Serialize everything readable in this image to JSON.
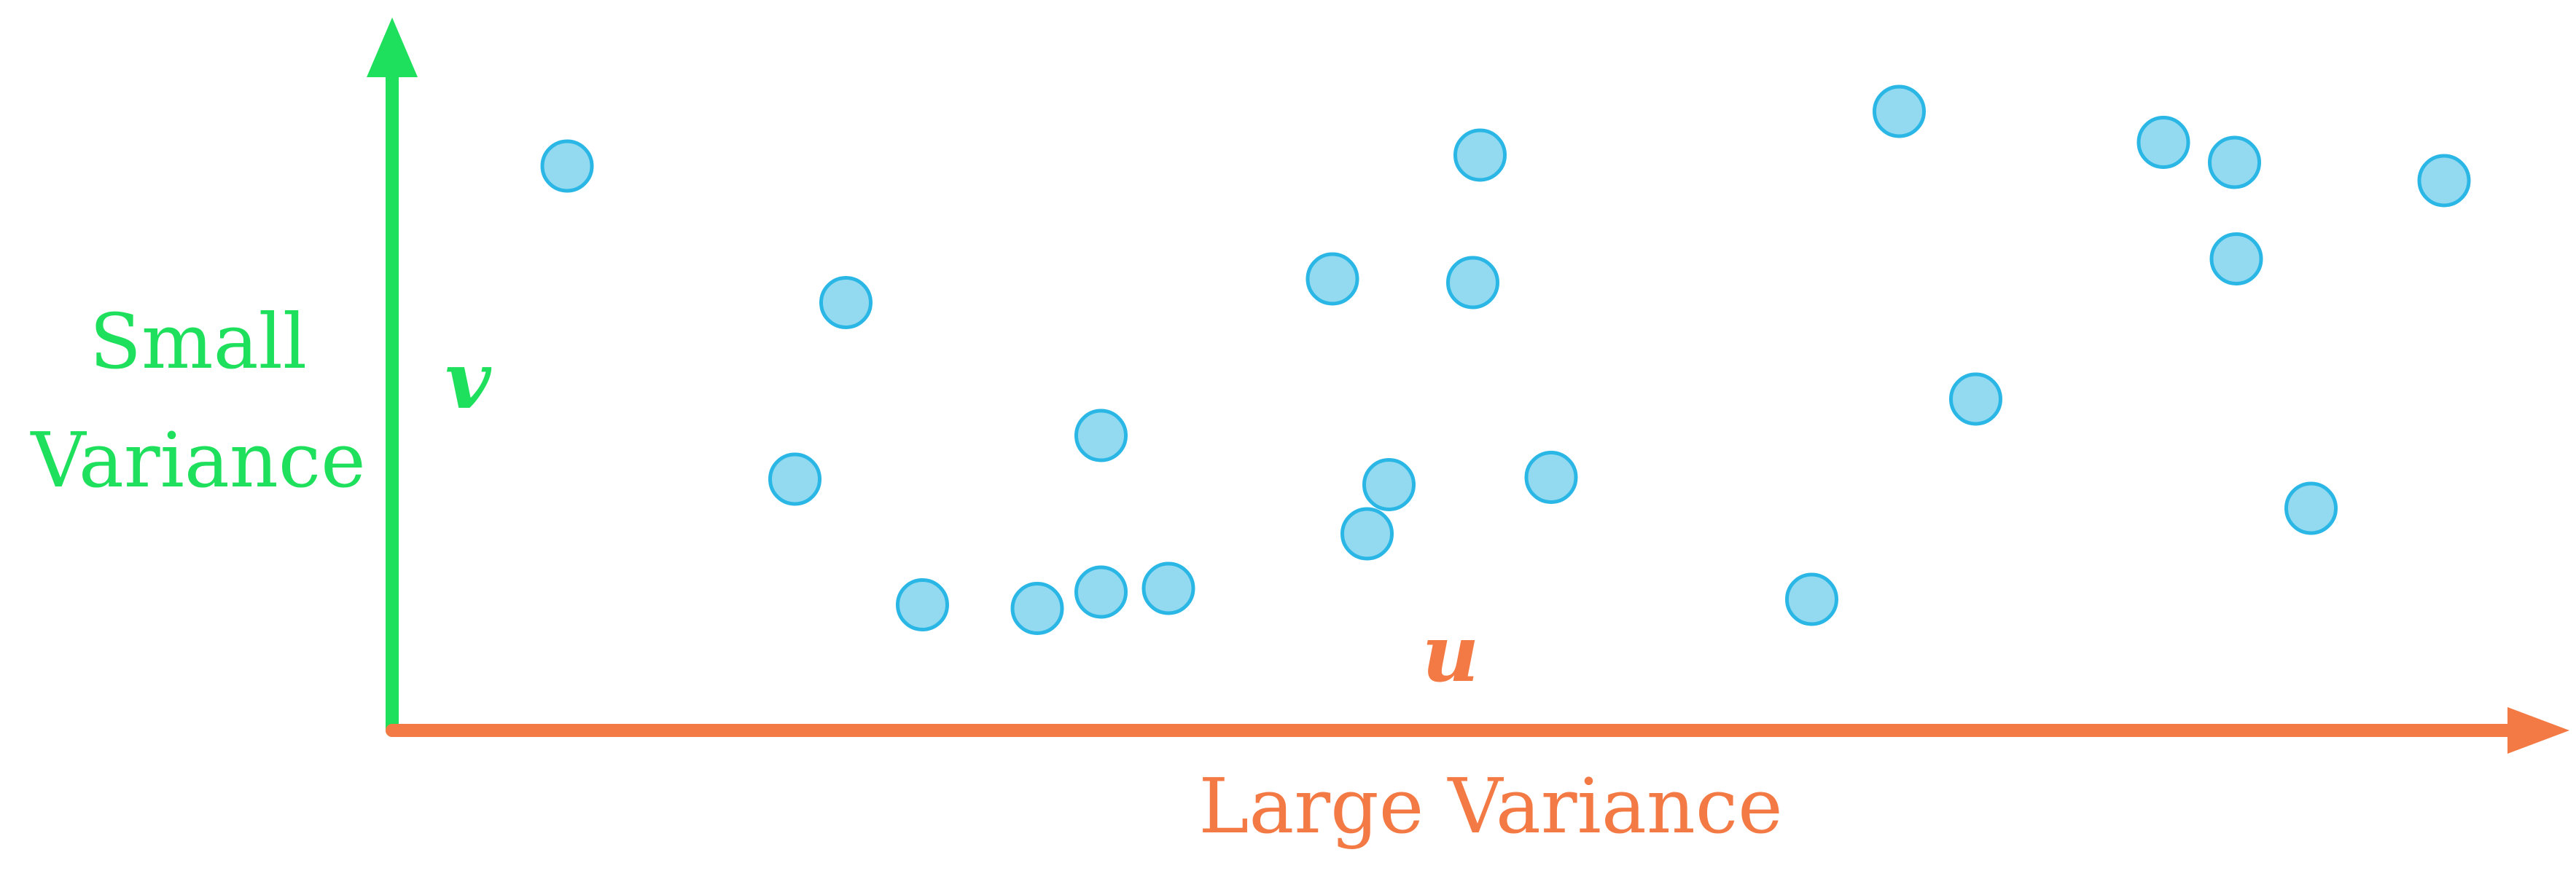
{
  "colors": {
    "vertical_axis": "#1fe05c",
    "horizontal_axis": "#f47a45",
    "point_fill": "#93d9f0",
    "point_stroke": "#2bb7e5"
  },
  "labels": {
    "vertical_axis_label_line1": "Small",
    "vertical_axis_label_line2": "Variance",
    "vertical_axis_symbol": "v",
    "horizontal_axis_label": "Large Variance",
    "horizontal_axis_symbol": "u"
  },
  "points": [
    {
      "u": 96,
      "v": 310
    },
    {
      "u": 249,
      "v": 235
    },
    {
      "u": 221,
      "v": 138
    },
    {
      "u": 291,
      "v": 69
    },
    {
      "u": 354,
      "v": 67
    },
    {
      "u": 389,
      "v": 76
    },
    {
      "u": 389,
      "v": 162
    },
    {
      "u": 426,
      "v": 78
    },
    {
      "u": 516,
      "v": 248
    },
    {
      "u": 597,
      "v": 316
    },
    {
      "u": 593,
      "v": 246
    },
    {
      "u": 547,
      "v": 135
    },
    {
      "u": 535,
      "v": 108
    },
    {
      "u": 636,
      "v": 139
    },
    {
      "u": 779,
      "v": 72
    },
    {
      "u": 827,
      "v": 340
    },
    {
      "u": 869,
      "v": 182
    },
    {
      "u": 972,
      "v": 323
    },
    {
      "u": 1011,
      "v": 312
    },
    {
      "u": 1012,
      "v": 259
    },
    {
      "u": 1126,
      "v": 302
    },
    {
      "u": 1053,
      "v": 122
    }
  ]
}
